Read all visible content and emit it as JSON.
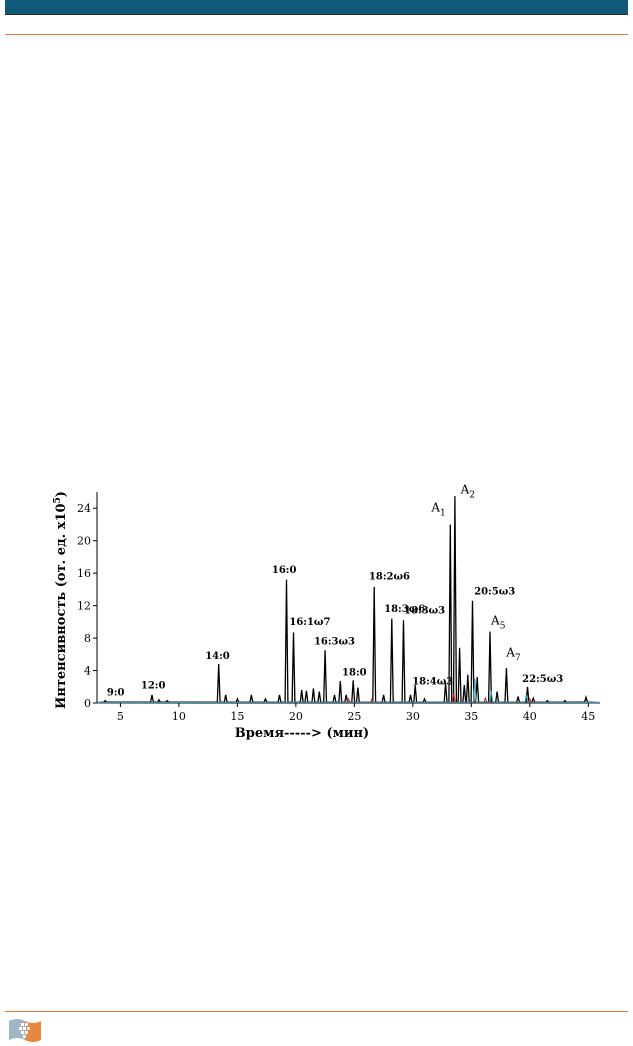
{
  "header": {
    "bar_color": "#0e5a78",
    "rule_color": "#e07a3a"
  },
  "footer": {
    "logo": "grid-flag-logo-icon"
  },
  "chart_data": {
    "type": "line",
    "xlabel": "Время-----> (мин)",
    "ylabel": "Интенсивность (от. ед. x10",
    "ylabel_exp": "5",
    "ylabel_close": ")",
    "xlim": [
      3,
      46
    ],
    "ylim": [
      0,
      26
    ],
    "xticks": [
      5,
      10,
      15,
      20,
      25,
      30,
      35,
      40,
      45
    ],
    "yticks": [
      0,
      4,
      8,
      12,
      16,
      20,
      24
    ],
    "grid": false,
    "series": [
      {
        "line_color": "#000000",
        "peaks": [
          {
            "x": 3.7,
            "y": 0.3
          },
          {
            "x": 7.7,
            "y": 1.0
          },
          {
            "x": 8.3,
            "y": 0.4
          },
          {
            "x": 9.0,
            "y": 0.3
          },
          {
            "x": 13.4,
            "y": 4.8
          },
          {
            "x": 14.0,
            "y": 1.0
          },
          {
            "x": 15.0,
            "y": 0.5
          },
          {
            "x": 16.2,
            "y": 1.0
          },
          {
            "x": 17.4,
            "y": 0.5
          },
          {
            "x": 18.6,
            "y": 1.0
          },
          {
            "x": 19.2,
            "y": 15.2
          },
          {
            "x": 19.8,
            "y": 8.7
          },
          {
            "x": 20.5,
            "y": 1.6
          },
          {
            "x": 20.9,
            "y": 1.5
          },
          {
            "x": 21.5,
            "y": 1.8
          },
          {
            "x": 22.0,
            "y": 1.4
          },
          {
            "x": 22.5,
            "y": 6.5
          },
          {
            "x": 23.3,
            "y": 1.0
          },
          {
            "x": 23.8,
            "y": 2.7
          },
          {
            "x": 24.3,
            "y": 1.0
          },
          {
            "x": 24.9,
            "y": 2.8
          },
          {
            "x": 25.3,
            "y": 1.9
          },
          {
            "x": 26.7,
            "y": 14.3
          },
          {
            "x": 27.5,
            "y": 1.0
          },
          {
            "x": 28.2,
            "y": 10.4
          },
          {
            "x": 29.2,
            "y": 10.2
          },
          {
            "x": 29.8,
            "y": 1.0
          },
          {
            "x": 30.2,
            "y": 2.2
          },
          {
            "x": 31.0,
            "y": 0.5
          },
          {
            "x": 32.8,
            "y": 2.5
          },
          {
            "x": 33.2,
            "y": 22.0
          },
          {
            "x": 33.6,
            "y": 25.5
          },
          {
            "x": 34.0,
            "y": 6.8
          },
          {
            "x": 34.4,
            "y": 2.2
          },
          {
            "x": 34.7,
            "y": 3.5
          },
          {
            "x": 35.1,
            "y": 12.6
          },
          {
            "x": 35.5,
            "y": 3.2
          },
          {
            "x": 36.6,
            "y": 8.8
          },
          {
            "x": 37.2,
            "y": 1.4
          },
          {
            "x": 38.0,
            "y": 4.3
          },
          {
            "x": 39.0,
            "y": 0.8
          },
          {
            "x": 39.8,
            "y": 2.0
          },
          {
            "x": 40.3,
            "y": 0.6
          },
          {
            "x": 41.5,
            "y": 0.3
          },
          {
            "x": 43.0,
            "y": 0.3
          },
          {
            "x": 44.8,
            "y": 0.7
          }
        ]
      },
      {
        "line_color": "#cc2222",
        "peaks": [
          {
            "x": 24.5,
            "y": 0.5
          },
          {
            "x": 26.5,
            "y": 0.5
          },
          {
            "x": 33.5,
            "y": 1.2
          },
          {
            "x": 36.2,
            "y": 0.6
          },
          {
            "x": 40.0,
            "y": 0.5
          }
        ]
      },
      {
        "line_color": "#2a9ab5",
        "peaks": [
          {
            "x": 35.3,
            "y": 3.0
          },
          {
            "x": 36.7,
            "y": 1.5
          },
          {
            "x": 39.7,
            "y": 1.0
          }
        ]
      }
    ],
    "annotations": [
      {
        "text": "9:0",
        "x": 4.6,
        "y": 0.9
      },
      {
        "text": "12:0",
        "x": 7.8,
        "y": 1.8
      },
      {
        "text": "14:0",
        "x": 13.3,
        "y": 5.4
      },
      {
        "text": "16:0",
        "x": 19.0,
        "y": 16.0
      },
      {
        "text": "16:1ω7",
        "x": 21.2,
        "y": 9.6
      },
      {
        "text": "16:3ω3",
        "x": 23.3,
        "y": 7.2
      },
      {
        "text": "18:0",
        "x": 25.0,
        "y": 3.4
      },
      {
        "text": "18:2ω6",
        "x": 28.0,
        "y": 15.2
      },
      {
        "text": "18:3ω6",
        "x": 29.3,
        "y": 11.2
      },
      {
        "text": "18:3ω3",
        "x": 31.0,
        "y": 11.0
      },
      {
        "text": "18:4ω3",
        "x": 31.7,
        "y": 2.3
      },
      {
        "text": "20:5ω3",
        "x": 37.0,
        "y": 13.4
      },
      {
        "text": "22:5ω3",
        "x": 41.1,
        "y": 2.6
      }
    ],
    "labels_sub": [
      {
        "text": "A",
        "sub": "1",
        "x": 32.2,
        "y": 23.6
      },
      {
        "text": "A",
        "sub": "2",
        "x": 34.7,
        "y": 25.8
      },
      {
        "text": "A",
        "sub": "5",
        "x": 37.3,
        "y": 9.7
      },
      {
        "text": "A",
        "sub": "7",
        "x": 38.6,
        "y": 5.7
      }
    ]
  }
}
